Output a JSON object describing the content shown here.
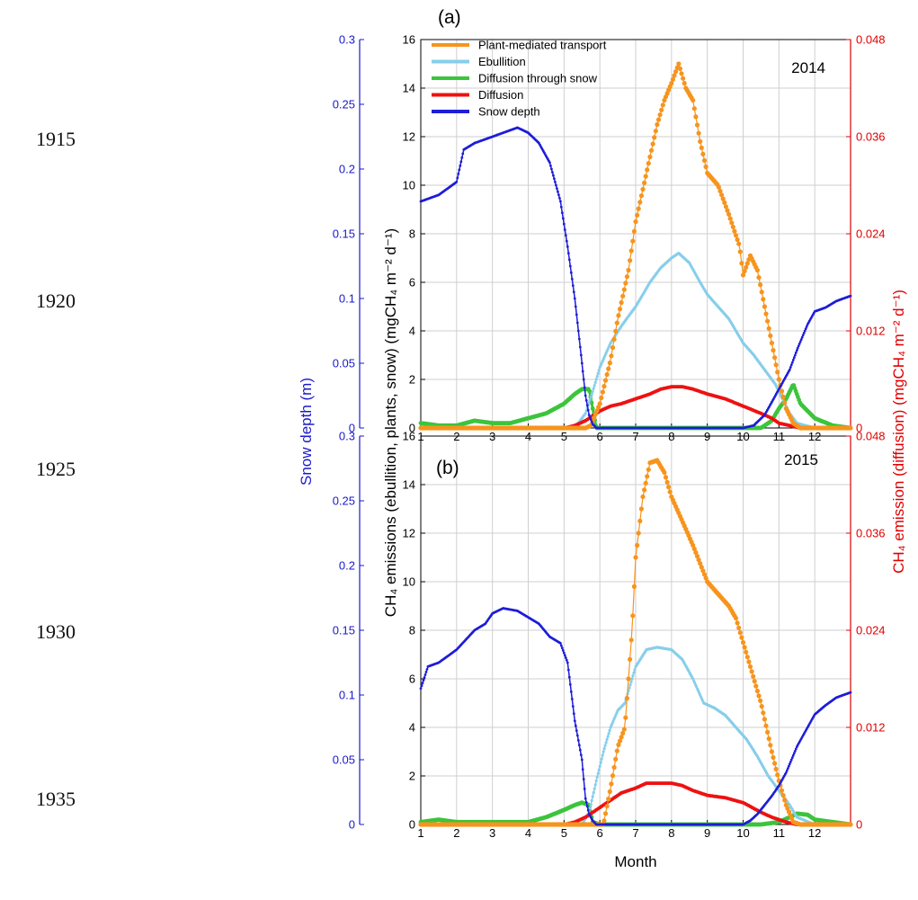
{
  "line_numbers": [
    "1915",
    "1920",
    "1925",
    "1930",
    "1935"
  ],
  "colors": {
    "plant": "#f7941d",
    "ebullition": "#87ceeb",
    "snow_diffusion": "#3cc43c",
    "diffusion": "#ee1111",
    "snow_depth": "#1d1dd8",
    "left_axis": "#1a1acc",
    "right_axis": "#e00000"
  },
  "chart_data": [
    {
      "type": "line",
      "panel_label": "(a)",
      "year_label": "2014",
      "xlabel": "",
      "xlim": [
        1,
        13
      ],
      "x_ticks": [
        1,
        2,
        3,
        4,
        5,
        6,
        7,
        8,
        9,
        10,
        11,
        12
      ],
      "ylim_main": [
        0,
        16
      ],
      "y_ticks_main": [
        0,
        2,
        4,
        6,
        8,
        10,
        12,
        14,
        16
      ],
      "ylim_diffusion": [
        0,
        0.048
      ],
      "y_ticks_diffusion": [
        "0",
        "0.012",
        "0.024",
        "0.036",
        "0.048"
      ],
      "ylim_snow": [
        0,
        0.3
      ],
      "y_ticks_snow": [
        "0",
        "0.05",
        "0.1",
        "0.15",
        "0.2",
        "0.25",
        "0.3"
      ],
      "legend_position": "top-left",
      "legend": [
        "Plant-mediated transport",
        "Ebullition",
        "Diffusion through snow",
        "Diffusion",
        "Snow depth"
      ],
      "series": [
        {
          "name": "Plant-mediated transport",
          "axis": "main",
          "x": [
            1,
            5.6,
            5.75,
            6,
            6.3,
            6.5,
            6.8,
            7,
            7.3,
            7.6,
            7.8,
            8,
            8.2,
            8.4,
            8.6,
            8.8,
            9,
            9.3,
            9.6,
            9.9,
            10,
            10.2,
            10.4,
            10.6,
            10.8,
            11,
            11.2,
            11.4,
            11.6,
            12,
            13
          ],
          "y": [
            0,
            0,
            0.1,
            1.0,
            2.8,
            4.5,
            6.5,
            8.5,
            10.5,
            12.5,
            13.5,
            14.2,
            15.0,
            14.0,
            13.5,
            11.8,
            10.5,
            10.0,
            8.8,
            7.5,
            6.3,
            7.1,
            6.5,
            5.0,
            3.5,
            2.0,
            0.8,
            0.2,
            0,
            0,
            0
          ]
        },
        {
          "name": "Ebullition",
          "axis": "main",
          "x": [
            1,
            5.2,
            5.4,
            5.6,
            5.8,
            6,
            6.3,
            6.6,
            7,
            7.4,
            7.7,
            8,
            8.2,
            8.5,
            8.8,
            9,
            9.3,
            9.6,
            10,
            10.3,
            10.6,
            10.9,
            11.1,
            11.3,
            11.5,
            12,
            13
          ],
          "y": [
            0,
            0,
            0.2,
            0.6,
            1.5,
            2.5,
            3.5,
            4.2,
            5.0,
            6.0,
            6.6,
            7.0,
            7.2,
            6.8,
            6.0,
            5.5,
            5.0,
            4.5,
            3.5,
            3.0,
            2.4,
            1.8,
            1.2,
            0.6,
            0.2,
            0,
            0
          ]
        },
        {
          "name": "Diffusion through snow",
          "axis": "main",
          "x": [
            1,
            1.5,
            2,
            2.5,
            3,
            3.5,
            4,
            4.5,
            5,
            5.3,
            5.5,
            5.7,
            5.8,
            5.9,
            10,
            10.5,
            10.8,
            11,
            11.2,
            11.4,
            11.6,
            12,
            12.5,
            13
          ],
          "y": [
            0.2,
            0.1,
            0.1,
            0.3,
            0.2,
            0.2,
            0.4,
            0.6,
            1.0,
            1.4,
            1.6,
            1.6,
            0.8,
            0,
            0,
            0,
            0.3,
            0.8,
            1.2,
            1.8,
            1.0,
            0.4,
            0.1,
            0
          ]
        },
        {
          "name": "Diffusion",
          "axis": "diffusion",
          "x": [
            1,
            5,
            5.3,
            5.6,
            5.8,
            6,
            6.3,
            6.6,
            7,
            7.4,
            7.7,
            8,
            8.3,
            8.6,
            9,
            9.5,
            10,
            10.5,
            10.8,
            11,
            11.3,
            11.6,
            12,
            13
          ],
          "y": [
            0,
            0,
            0.0003,
            0.0009,
            0.0015,
            0.0021,
            0.0027,
            0.003,
            0.0036,
            0.0042,
            0.0048,
            0.0051,
            0.0051,
            0.0048,
            0.0042,
            0.0036,
            0.0027,
            0.0018,
            0.0012,
            0.0006,
            0.0003,
            0,
            0,
            0
          ]
        },
        {
          "name": "Snow depth",
          "axis": "snow",
          "x": [
            1,
            1.5,
            2,
            2.2,
            2.5,
            3,
            3.3,
            3.7,
            4,
            4.3,
            4.6,
            4.9,
            5.1,
            5.3,
            5.5,
            5.6,
            5.7,
            5.8,
            5.9,
            6,
            10,
            10.3,
            10.6,
            10.8,
            11,
            11.3,
            11.5,
            11.8,
            12,
            12.3,
            12.6,
            13
          ],
          "y": [
            0.175,
            0.18,
            0.19,
            0.215,
            0.22,
            0.225,
            0.228,
            0.232,
            0.228,
            0.22,
            0.205,
            0.175,
            0.14,
            0.1,
            0.05,
            0.025,
            0.01,
            0.003,
            0,
            0,
            0,
            0.002,
            0.01,
            0.02,
            0.03,
            0.045,
            0.06,
            0.08,
            0.09,
            0.093,
            0.098,
            0.102
          ]
        }
      ]
    },
    {
      "type": "line",
      "panel_label": "(b)",
      "year_label": "2015",
      "xlabel": "Month",
      "xlim": [
        1,
        13
      ],
      "x_ticks": [
        1,
        2,
        3,
        4,
        5,
        6,
        7,
        8,
        9,
        10,
        11,
        12
      ],
      "ylim_main": [
        0,
        16
      ],
      "y_ticks_main": [
        0,
        2,
        4,
        6,
        8,
        10,
        12,
        14,
        16
      ],
      "ylim_diffusion": [
        0,
        0.048
      ],
      "y_ticks_diffusion": [
        "0",
        "0.012",
        "0.024",
        "0.036",
        "0.048"
      ],
      "ylim_snow": [
        0,
        0.3
      ],
      "y_ticks_snow": [
        "0",
        "0.05",
        "0.1",
        "0.15",
        "0.2",
        "0.25",
        "0.3"
      ],
      "series": [
        {
          "name": "Plant-mediated transport",
          "axis": "main",
          "x": [
            1,
            6.1,
            6.3,
            6.5,
            6.7,
            6.9,
            7,
            7.2,
            7.4,
            7.6,
            7.8,
            8,
            8.3,
            8.6,
            9,
            9.3,
            9.6,
            9.8,
            10,
            10.2,
            10.5,
            10.8,
            11,
            11.2,
            11.4,
            11.6,
            12,
            13
          ],
          "y": [
            0,
            0,
            1.5,
            3.2,
            4.0,
            8.0,
            11.0,
            13.5,
            14.9,
            15.0,
            14.5,
            13.5,
            12.5,
            11.5,
            10.0,
            9.5,
            9.0,
            8.5,
            7.5,
            6.5,
            5.0,
            3.0,
            1.8,
            0.8,
            0.1,
            0,
            0,
            0
          ]
        },
        {
          "name": "Ebullition",
          "axis": "main",
          "x": [
            1,
            5.5,
            5.7,
            5.9,
            6.1,
            6.3,
            6.5,
            6.7,
            7,
            7.3,
            7.6,
            8,
            8.3,
            8.6,
            8.9,
            9.2,
            9.5,
            9.8,
            10.1,
            10.4,
            10.7,
            11,
            11.3,
            11.5,
            12,
            13
          ],
          "y": [
            0,
            0,
            0.5,
            1.8,
            3.0,
            4.0,
            4.7,
            5.0,
            6.5,
            7.2,
            7.3,
            7.2,
            6.8,
            6.0,
            5.0,
            4.8,
            4.5,
            4.0,
            3.5,
            2.8,
            2.0,
            1.4,
            0.8,
            0.3,
            0,
            0
          ]
        },
        {
          "name": "Diffusion through snow",
          "axis": "main",
          "x": [
            1,
            1.5,
            2,
            3,
            4,
            4.5,
            5,
            5.3,
            5.5,
            5.7,
            5.8,
            6,
            10,
            10.5,
            11,
            11.3,
            11.5,
            11.8,
            12,
            12.5,
            13
          ],
          "y": [
            0.1,
            0.2,
            0.1,
            0.1,
            0.1,
            0.3,
            0.6,
            0.8,
            0.9,
            0.8,
            0.1,
            0,
            0,
            0,
            0.1,
            0.3,
            0.45,
            0.4,
            0.2,
            0.1,
            0
          ]
        },
        {
          "name": "Diffusion",
          "axis": "diffusion",
          "x": [
            1,
            5,
            5.3,
            5.6,
            6,
            6.3,
            6.6,
            7,
            7.3,
            7.6,
            8,
            8.3,
            8.6,
            9,
            9.5,
            10,
            10.5,
            10.8,
            11,
            11.2,
            11.5,
            12,
            13
          ],
          "y": [
            0,
            0,
            0.0003,
            0.0009,
            0.0021,
            0.003,
            0.0039,
            0.0045,
            0.0051,
            0.0051,
            0.0051,
            0.0048,
            0.0042,
            0.0036,
            0.0033,
            0.0027,
            0.0015,
            0.0009,
            0.0006,
            0.0003,
            0,
            0,
            0
          ]
        },
        {
          "name": "Snow depth",
          "axis": "snow",
          "x": [
            1,
            1.2,
            1.5,
            2,
            2.5,
            2.8,
            3,
            3.3,
            3.7,
            4,
            4.3,
            4.6,
            4.9,
            5.1,
            5.3,
            5.5,
            5.6,
            5.7,
            5.8,
            5.9,
            6,
            10,
            10.2,
            10.4,
            10.6,
            10.8,
            11,
            11.2,
            11.5,
            11.8,
            12,
            12.3,
            12.6,
            13
          ],
          "y": [
            0.105,
            0.122,
            0.125,
            0.135,
            0.15,
            0.155,
            0.163,
            0.167,
            0.165,
            0.16,
            0.155,
            0.145,
            0.14,
            0.125,
            0.08,
            0.05,
            0.02,
            0.008,
            0.003,
            0,
            0,
            0,
            0.003,
            0.008,
            0.015,
            0.022,
            0.03,
            0.04,
            0.06,
            0.075,
            0.085,
            0.092,
            0.098,
            0.102
          ]
        }
      ]
    }
  ],
  "axis_titles": {
    "snow": "Snow depth  (m)",
    "main": "CH₄ emissions (ebullition, plants, snow)  (mgCH₄ m⁻² d⁻¹)",
    "diffusion": "CH₄ emission (diffusion)  (mgCH₄ m⁻² d⁻¹)"
  }
}
